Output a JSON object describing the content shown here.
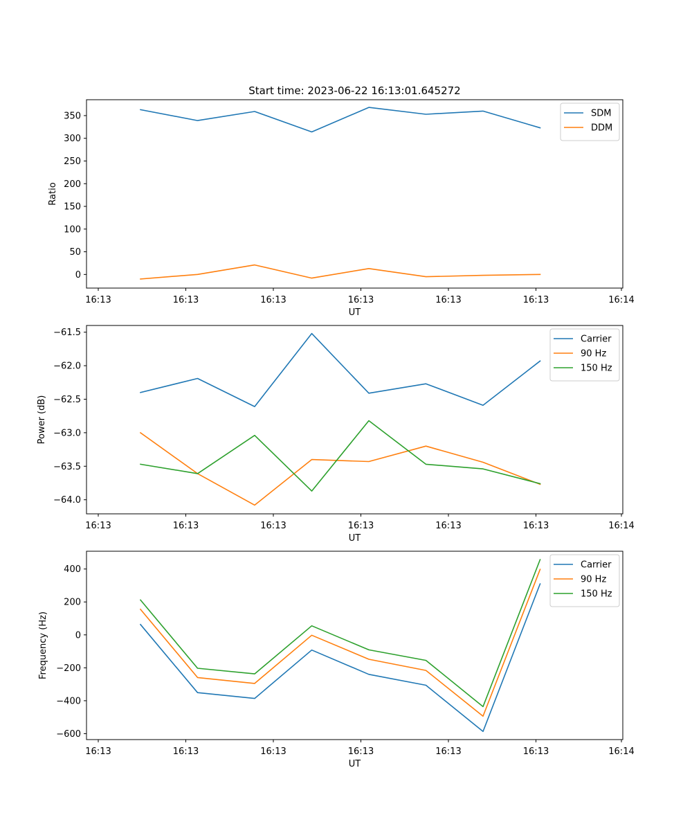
{
  "figure_title": "Start time: 2023-06-22 16:13:01.645272",
  "x_tick_labels": [
    "16:13",
    "16:13",
    "16:13",
    "16:13",
    "16:13",
    "16:13",
    "16:14"
  ],
  "chart_data": [
    {
      "type": "line",
      "xlabel": "UT",
      "ylabel": "Ratio",
      "ylim": [
        -30,
        385
      ],
      "yticks": [
        0,
        50,
        100,
        150,
        200,
        250,
        300,
        350
      ],
      "ytick_labels": [
        "0",
        "50",
        "100",
        "150",
        "200",
        "250",
        "300",
        "350"
      ],
      "legend_position": "top-right",
      "series": [
        {
          "name": "SDM",
          "color": "#1f77b4",
          "values": [
            363,
            339,
            359,
            314,
            368,
            353,
            360,
            323
          ]
        },
        {
          "name": "DDM",
          "color": "#ff7f0e",
          "values": [
            -10,
            0,
            21,
            -8,
            13,
            -5,
            -2,
            0
          ]
        }
      ]
    },
    {
      "type": "line",
      "xlabel": "UT",
      "ylabel": "Power (dB)",
      "ylim": [
        -64.21,
        -61.4
      ],
      "yticks": [
        -64.0,
        -63.5,
        -63.0,
        -62.5,
        -62.0,
        -61.5
      ],
      "ytick_labels": [
        "−64.0",
        "−63.5",
        "−63.0",
        "−62.5",
        "−62.0",
        "−61.5"
      ],
      "legend_position": "top-right",
      "series": [
        {
          "name": "Carrier",
          "color": "#1f77b4",
          "values": [
            -62.4,
            -62.19,
            -62.61,
            -61.52,
            -62.41,
            -62.27,
            -62.59,
            -61.93
          ]
        },
        {
          "name": "90 Hz",
          "color": "#ff7f0e",
          "values": [
            -63.0,
            -63.61,
            -64.08,
            -63.4,
            -63.43,
            -63.2,
            -63.44,
            -63.77
          ]
        },
        {
          "name": "150 Hz",
          "color": "#2ca02c",
          "values": [
            -63.47,
            -63.61,
            -63.04,
            -63.87,
            -62.82,
            -63.47,
            -63.54,
            -63.76
          ]
        }
      ]
    },
    {
      "type": "line",
      "xlabel": "UT",
      "ylabel": "Frequency (Hz)",
      "ylim": [
        -636,
        508
      ],
      "yticks": [
        -600,
        -400,
        -200,
        0,
        200,
        400
      ],
      "ytick_labels": [
        "−600",
        "−400",
        "−200",
        "0",
        "200",
        "400"
      ],
      "legend_position": "top-right",
      "series": [
        {
          "name": "Carrier",
          "color": "#1f77b4",
          "values": [
            63,
            -351,
            -386,
            -92,
            -240,
            -306,
            -587,
            310
          ]
        },
        {
          "name": "90 Hz",
          "color": "#ff7f0e",
          "values": [
            155,
            -259,
            -295,
            -2,
            -148,
            -216,
            -494,
            398
          ]
        },
        {
          "name": "150 Hz",
          "color": "#2ca02c",
          "values": [
            212,
            -203,
            -237,
            55,
            -91,
            -155,
            -436,
            457
          ]
        }
      ]
    }
  ]
}
